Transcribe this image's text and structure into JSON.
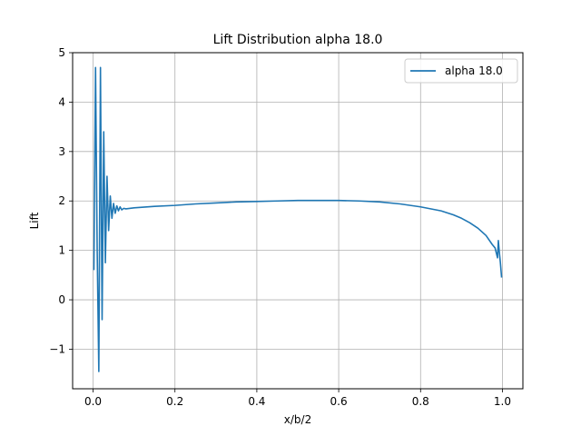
{
  "chart_data": {
    "type": "line",
    "title": "Lift Distribution alpha 18.0",
    "xlabel": "x/b/2",
    "ylabel": "Lift",
    "xlim": [
      -0.05,
      1.05
    ],
    "ylim": [
      -1.8,
      5.0
    ],
    "xticks": [
      0.0,
      0.2,
      0.4,
      0.6,
      0.8,
      1.0
    ],
    "xtick_labels": [
      "0.0",
      "0.2",
      "0.4",
      "0.6",
      "0.8",
      "1.0"
    ],
    "yticks": [
      -1,
      0,
      1,
      2,
      3,
      4,
      5
    ],
    "ytick_labels": [
      "−1",
      "0",
      "1",
      "2",
      "3",
      "4",
      "5"
    ],
    "grid": true,
    "legend_position": "top-right",
    "series": [
      {
        "name": "alpha 18.0",
        "color": "#1f77b4",
        "x": [
          0.002,
          0.006,
          0.01,
          0.014,
          0.018,
          0.022,
          0.026,
          0.03,
          0.034,
          0.038,
          0.042,
          0.046,
          0.05,
          0.054,
          0.058,
          0.062,
          0.066,
          0.07,
          0.075,
          0.08,
          0.1,
          0.15,
          0.2,
          0.25,
          0.3,
          0.35,
          0.4,
          0.45,
          0.5,
          0.55,
          0.6,
          0.65,
          0.7,
          0.75,
          0.8,
          0.85,
          0.88,
          0.9,
          0.92,
          0.94,
          0.96,
          0.975,
          0.982,
          0.985,
          0.988,
          0.99,
          0.992,
          0.995,
          0.998
        ],
        "y": [
          0.6,
          4.7,
          1.0,
          -1.45,
          4.7,
          -0.4,
          3.4,
          0.75,
          2.5,
          1.4,
          2.1,
          1.65,
          1.95,
          1.75,
          1.9,
          1.8,
          1.88,
          1.82,
          1.85,
          1.84,
          1.86,
          1.89,
          1.91,
          1.94,
          1.96,
          1.98,
          1.99,
          2.0,
          2.01,
          2.01,
          2.01,
          2.0,
          1.98,
          1.94,
          1.88,
          1.8,
          1.72,
          1.65,
          1.56,
          1.45,
          1.3,
          1.12,
          1.05,
          0.95,
          0.85,
          1.2,
          1.0,
          0.75,
          0.45
        ]
      }
    ]
  }
}
